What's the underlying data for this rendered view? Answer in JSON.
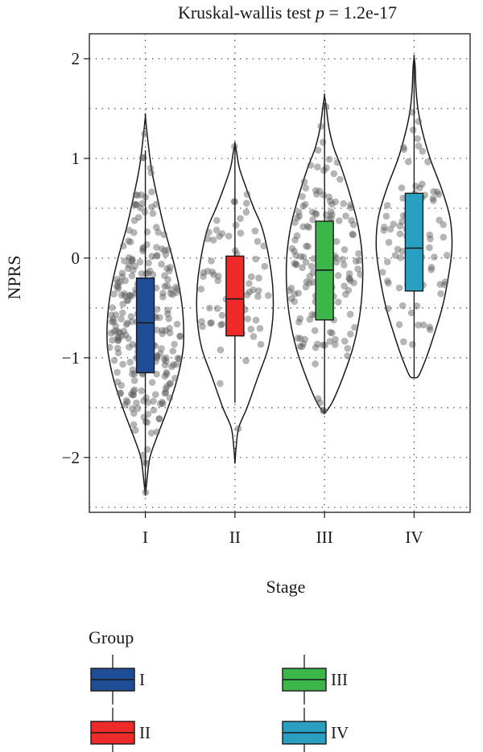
{
  "chart_data": {
    "type": "violin",
    "title_prefix": "Kruskal-wallis test ",
    "title_p": "p",
    "title_value": " = 1.2e-17",
    "xlabel": "Stage",
    "ylabel": "NPRS",
    "categories": [
      "I",
      "II",
      "III",
      "IV"
    ],
    "y_ticks": [
      -2,
      -1,
      0,
      1,
      2
    ],
    "ylim": [
      -2.55,
      2.25
    ],
    "grid": "dotted",
    "legend": {
      "title": "Group",
      "placement": "bottom",
      "items": [
        {
          "label": "I",
          "color": "#1f4e96"
        },
        {
          "label": "II",
          "color": "#ee2a2a"
        },
        {
          "label": "III",
          "color": "#3cb54a"
        },
        {
          "label": "IV",
          "color": "#2a9fc0"
        }
      ]
    },
    "groups": [
      {
        "name": "I",
        "color": "#1f4e96",
        "box": {
          "q1": -1.15,
          "median": -0.65,
          "q3": -0.2,
          "whisker_low": -2.3,
          "whisker_high": 1.08
        },
        "violin": {
          "min": -2.38,
          "max": 1.42,
          "profile": [
            [
              -2.38,
              0
            ],
            [
              -2.2,
              0.05
            ],
            [
              -2.0,
              0.12
            ],
            [
              -1.8,
              0.3
            ],
            [
              -1.5,
              0.6
            ],
            [
              -1.2,
              0.85
            ],
            [
              -0.9,
              1.0
            ],
            [
              -0.6,
              1.0
            ],
            [
              -0.3,
              0.9
            ],
            [
              0.0,
              0.72
            ],
            [
              0.3,
              0.5
            ],
            [
              0.6,
              0.32
            ],
            [
              0.9,
              0.16
            ],
            [
              1.2,
              0.06
            ],
            [
              1.42,
              0
            ]
          ]
        },
        "points": {
          "n": 260,
          "mean": -0.6,
          "sd": 0.62
        }
      },
      {
        "name": "II",
        "color": "#ee2a2a",
        "box": {
          "q1": -0.78,
          "median": -0.41,
          "q3": 0.02,
          "whisker_low": -1.45,
          "whisker_high": 1.15
        },
        "violin": {
          "min": -2.06,
          "max": 1.15,
          "profile": [
            [
              -2.06,
              0
            ],
            [
              -1.9,
              0.03
            ],
            [
              -1.7,
              0.1
            ],
            [
              -1.5,
              0.32
            ],
            [
              -1.2,
              0.6
            ],
            [
              -0.9,
              0.88
            ],
            [
              -0.6,
              1.0
            ],
            [
              -0.3,
              1.0
            ],
            [
              0.0,
              0.9
            ],
            [
              0.3,
              0.72
            ],
            [
              0.5,
              0.5
            ],
            [
              0.7,
              0.3
            ],
            [
              0.9,
              0.12
            ],
            [
              1.05,
              0.05
            ],
            [
              1.15,
              0
            ]
          ]
        },
        "points": {
          "n": 70,
          "mean": -0.35,
          "sd": 0.55
        }
      },
      {
        "name": "III",
        "color": "#3cb54a",
        "box": {
          "q1": -0.62,
          "median": -0.12,
          "q3": 0.37,
          "whisker_low": -1.55,
          "whisker_high": 1.55
        },
        "violin": {
          "min": -1.56,
          "max": 1.63,
          "profile": [
            [
              -1.56,
              0
            ],
            [
              -1.45,
              0.2
            ],
            [
              -1.2,
              0.48
            ],
            [
              -0.9,
              0.75
            ],
            [
              -0.6,
              0.92
            ],
            [
              -0.3,
              1.0
            ],
            [
              0.0,
              1.0
            ],
            [
              0.3,
              0.9
            ],
            [
              0.6,
              0.7
            ],
            [
              0.9,
              0.45
            ],
            [
              1.1,
              0.25
            ],
            [
              1.3,
              0.12
            ],
            [
              1.5,
              0.05
            ],
            [
              1.63,
              0
            ]
          ]
        },
        "points": {
          "n": 150,
          "mean": -0.1,
          "sd": 0.65
        }
      },
      {
        "name": "IV",
        "color": "#2a9fc0",
        "box": {
          "q1": -0.33,
          "median": 0.1,
          "q3": 0.65,
          "whisker_low": -1.2,
          "whisker_high": 2.0
        },
        "violin": {
          "min": -1.2,
          "max": 2.02,
          "profile": [
            [
              -1.2,
              0
            ],
            [
              -1.18,
              0.12
            ],
            [
              -1.0,
              0.32
            ],
            [
              -0.8,
              0.5
            ],
            [
              -0.5,
              0.74
            ],
            [
              -0.2,
              0.9
            ],
            [
              0.1,
              1.0
            ],
            [
              0.4,
              0.95
            ],
            [
              0.7,
              0.72
            ],
            [
              1.0,
              0.42
            ],
            [
              1.3,
              0.2
            ],
            [
              1.5,
              0.1
            ],
            [
              1.7,
              0.05
            ],
            [
              1.9,
              0.03
            ],
            [
              2.02,
              0
            ]
          ]
        },
        "points": {
          "n": 90,
          "mean": 0.2,
          "sd": 0.6
        }
      }
    ]
  }
}
